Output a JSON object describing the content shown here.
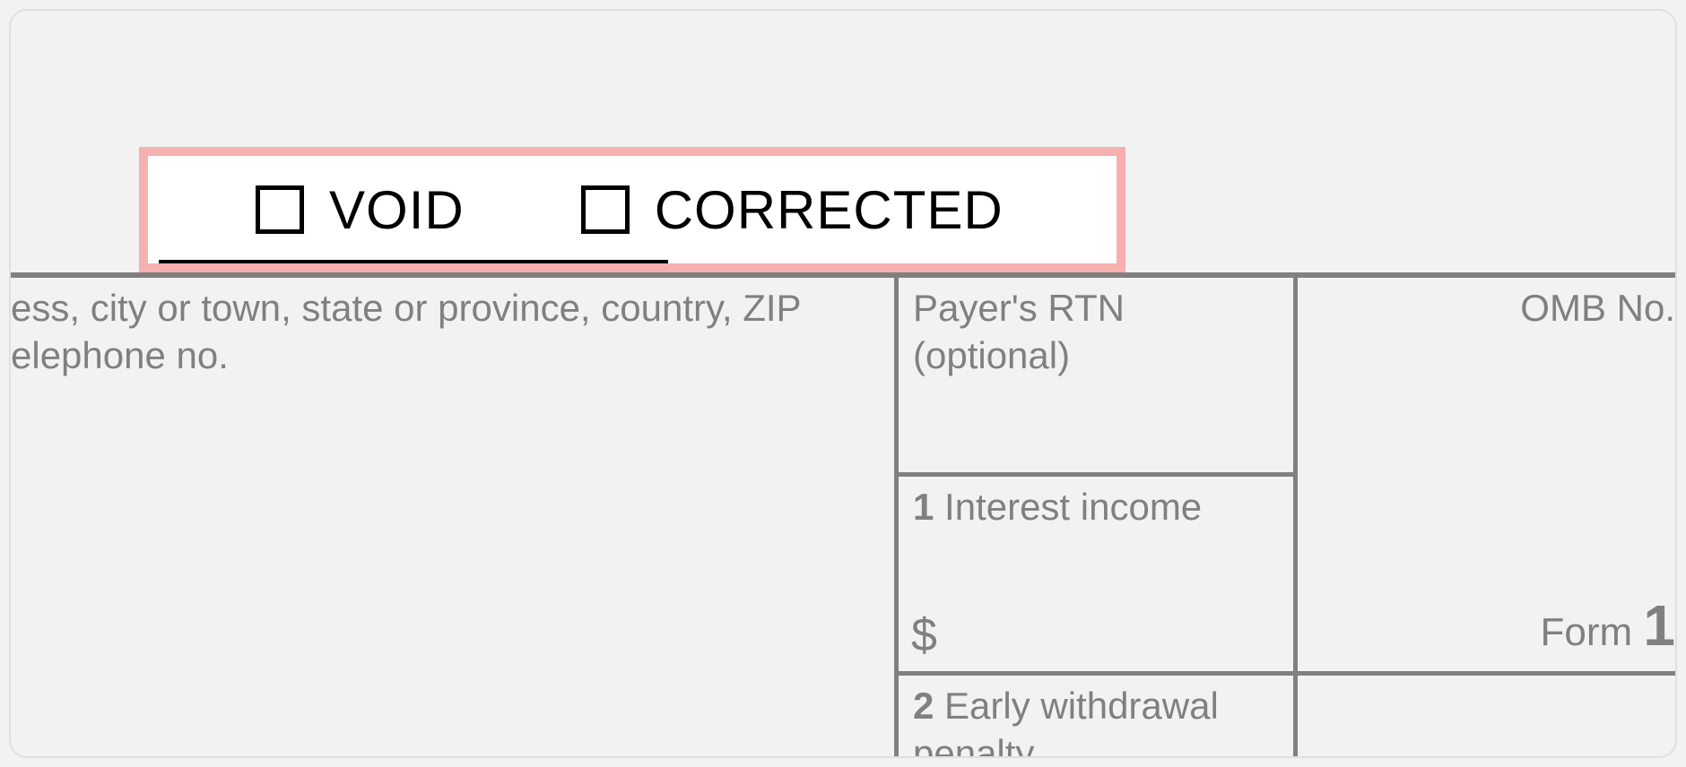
{
  "checkboxes": {
    "void_label": "VOID",
    "corrected_label": "CORRECTED"
  },
  "payer_address_label": "ess, city or town, state or province, country, ZIP elephone no.",
  "middle": {
    "rtn_label": "Payer's RTN (optional)",
    "box1_num": "1",
    "box1_label": " Interest income",
    "box1_dollar": "$",
    "box2_num": "2",
    "box2_label": " Early withdrawal penalty"
  },
  "right": {
    "omb_label": "OMB No.",
    "form_word": "Form ",
    "form_number_fragment": "1"
  },
  "style": {
    "highlight_border": "#f6b0b0",
    "grid_line": "#808080",
    "text_muted": "#808080",
    "background": "#f2f2f2",
    "checkbox_border": "#000000"
  }
}
